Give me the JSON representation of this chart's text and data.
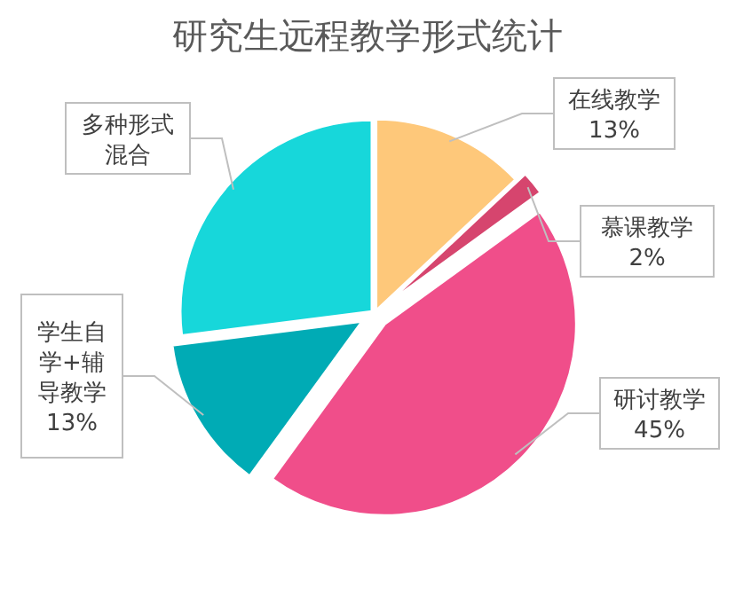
{
  "chart_data": {
    "type": "pie",
    "title": "研究生远程教学形式统计",
    "categories": [
      "在线教学",
      "慕课教学",
      "研讨教学",
      "学生自学+辅导教学",
      "多种形式混合"
    ],
    "values": [
      13,
      2,
      45,
      13,
      27
    ],
    "value_labels": [
      "13%",
      "2%",
      "45%",
      "13%",
      null
    ],
    "colors": [
      "#fec87a",
      "#d6456e",
      "#f04e8a",
      "#00abb5",
      "#17d7da"
    ],
    "legend": false
  }
}
